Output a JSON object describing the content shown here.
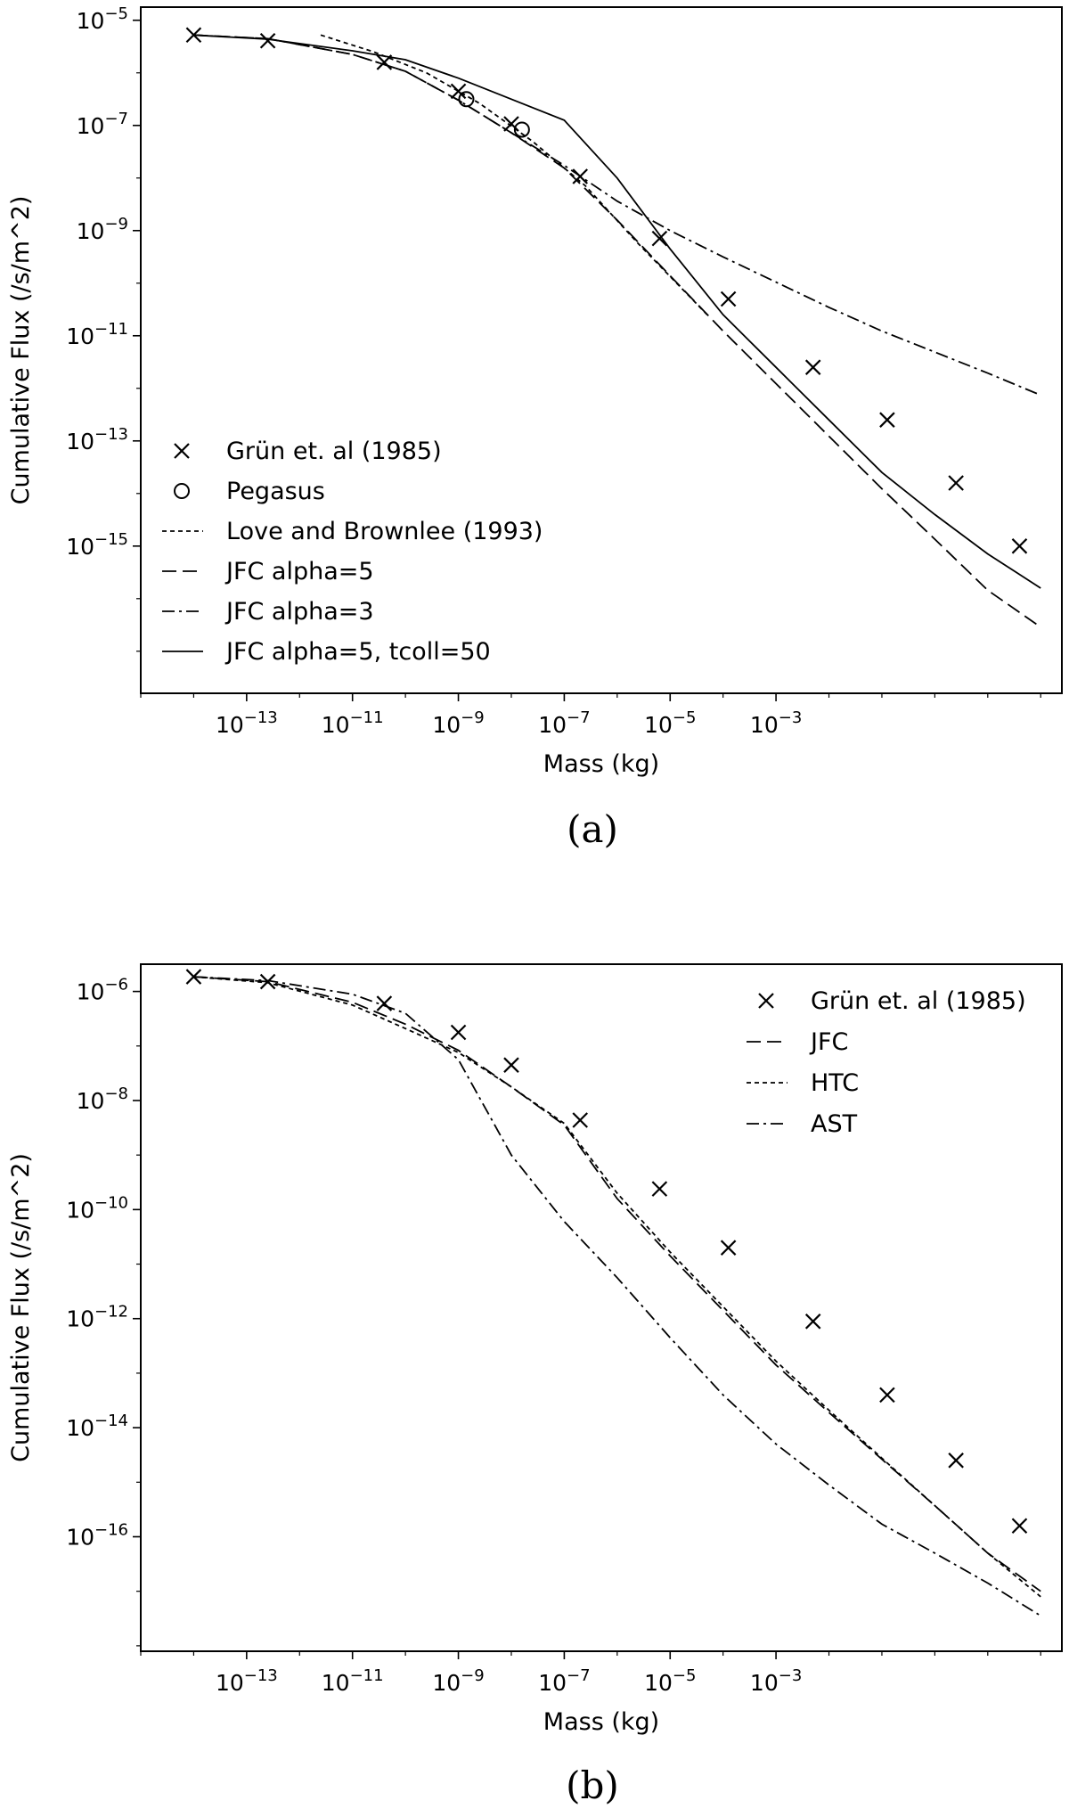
{
  "chart_data": [
    {
      "type": "line",
      "xscale": "log",
      "yscale": "log",
      "xlabel": "Mass (kg)",
      "ylabel": "Cumulative Flux (/s/m^2)",
      "caption": "(a)",
      "xlim_exp": [
        -15.0,
        2.4
      ],
      "ylim_exp": [
        -17.8,
        -4.75
      ],
      "xticks": [
        -13,
        -11,
        -9,
        -7,
        -5,
        -3
      ],
      "yticks": [
        -15,
        -13,
        -11,
        -9,
        -7,
        -5
      ],
      "legend_position": "lower-left",
      "series": [
        {
          "name": "Grün et. al (1985)",
          "style": "marker-x",
          "x": [
            -14.0,
            -12.6,
            -10.4,
            -9.0,
            -8.0,
            -6.7,
            -5.2,
            -3.9,
            -2.3,
            -0.9,
            0.4,
            1.6
          ],
          "y": [
            -5.28,
            -5.39,
            -5.8,
            -6.35,
            -6.97,
            -7.97,
            -9.15,
            -10.3,
            -11.6,
            -12.6,
            -13.8,
            -15.0
          ]
        },
        {
          "name": "Pegasus",
          "style": "marker-o",
          "x": [
            -8.85,
            -7.8
          ],
          "y": [
            -6.5,
            -7.08
          ]
        },
        {
          "name": "Love and Brownlee (1993)",
          "style": "dotted",
          "x": [
            -11.6,
            -10.6,
            -9.6,
            -8.6,
            -7.6,
            -6.6,
            -5.6,
            -4.3
          ],
          "y": [
            -5.28,
            -5.6,
            -6.0,
            -6.58,
            -7.3,
            -8.15,
            -9.25,
            -10.6
          ]
        },
        {
          "name": "JFC alpha=5",
          "style": "dashed",
          "x": [
            -14.0,
            -12.6,
            -11.0,
            -10.0,
            -9.0,
            -8.0,
            -7.0,
            -6.0,
            -5.0,
            -4.0,
            -3.0,
            -2.0,
            -1.0,
            0.0,
            1.0,
            2.0
          ],
          "y": [
            -5.28,
            -5.35,
            -5.65,
            -5.97,
            -6.52,
            -7.14,
            -7.81,
            -8.8,
            -9.86,
            -10.91,
            -11.91,
            -12.91,
            -13.91,
            -14.87,
            -15.84,
            -16.54
          ]
        },
        {
          "name": "JFC alpha=3",
          "style": "dashdot",
          "x": [
            -14.0,
            -12.6,
            -11.0,
            -10.0,
            -9.0,
            -8.0,
            -7.0,
            -6.0,
            -5.0,
            -4.0,
            -3.0,
            -2.0,
            -1.0,
            0.0,
            1.0,
            2.0
          ],
          "y": [
            -5.28,
            -5.35,
            -5.65,
            -5.97,
            -6.52,
            -7.14,
            -7.76,
            -8.44,
            -9.0,
            -9.5,
            -9.98,
            -10.46,
            -10.91,
            -11.31,
            -11.71,
            -12.13
          ]
        },
        {
          "name": "JFC alpha=5, tcoll=50",
          "style": "solid",
          "x": [
            -14.0,
            -12.6,
            -11.0,
            -10.0,
            -9.0,
            -8.0,
            -7.0,
            -6.0,
            -5.0,
            -4.0,
            -3.0,
            -2.0,
            -1.0,
            0.0,
            1.0,
            2.0
          ],
          "y": [
            -5.28,
            -5.36,
            -5.58,
            -5.75,
            -6.1,
            -6.5,
            -6.9,
            -8.0,
            -9.35,
            -10.6,
            -11.6,
            -12.6,
            -13.6,
            -14.4,
            -15.15,
            -15.8
          ]
        }
      ]
    },
    {
      "type": "line",
      "xscale": "log",
      "yscale": "log",
      "xlabel": "Mass (kg)",
      "ylabel": "Cumulative Flux (/s/m^2)",
      "caption": "(b)",
      "xlim_exp": [
        -15.0,
        2.4
      ],
      "ylim_exp": [
        -18.1,
        -5.5
      ],
      "xticks": [
        -13,
        -11,
        -9,
        -7,
        -5,
        -3
      ],
      "yticks": [
        -16,
        -14,
        -12,
        -10,
        -8,
        -6
      ],
      "legend_position": "upper-right",
      "series": [
        {
          "name": "Grün et. al (1985)",
          "style": "marker-x",
          "x": [
            -14.0,
            -12.6,
            -10.4,
            -9.0,
            -8.0,
            -6.7,
            -5.2,
            -3.9,
            -2.3,
            -0.9,
            0.4,
            1.6
          ],
          "y": [
            -5.73,
            -5.82,
            -6.22,
            -6.75,
            -7.35,
            -8.36,
            -9.62,
            -10.7,
            -12.05,
            -13.4,
            -14.6,
            -15.8
          ]
        },
        {
          "name": "JFC",
          "style": "dashed",
          "x": [
            -14.0,
            -12.6,
            -11.0,
            -10.0,
            -9.0,
            -8.0,
            -7.0,
            -6.0,
            -5.0,
            -4.0,
            -3.0,
            -2.0,
            -1.0,
            0.0,
            1.0,
            2.0
          ],
          "y": [
            -5.73,
            -5.82,
            -6.2,
            -6.6,
            -7.08,
            -7.75,
            -8.45,
            -9.8,
            -10.85,
            -11.85,
            -12.85,
            -13.72,
            -14.58,
            -15.43,
            -16.3,
            -17.0
          ]
        },
        {
          "name": "HTC",
          "style": "dotted",
          "x": [
            -14.0,
            -12.6,
            -11.0,
            -10.0,
            -9.0,
            -8.0,
            -7.0,
            -6.0,
            -5.0,
            -4.0,
            -3.0,
            -2.0,
            -1.0,
            0.0,
            1.0,
            2.0
          ],
          "y": [
            -5.73,
            -5.84,
            -6.25,
            -6.68,
            -7.12,
            -7.75,
            -8.42,
            -9.7,
            -10.78,
            -11.78,
            -12.78,
            -13.68,
            -14.56,
            -15.43,
            -16.3,
            -17.1
          ]
        },
        {
          "name": "AST",
          "style": "dashdot",
          "x": [
            -14.0,
            -12.6,
            -11.0,
            -10.0,
            -9.0,
            -8.0,
            -7.0,
            -6.0,
            -5.0,
            -4.0,
            -3.0,
            -2.0,
            -1.0,
            0.0,
            1.0,
            2.0
          ],
          "y": [
            -5.73,
            -5.8,
            -6.05,
            -6.4,
            -7.25,
            -9.0,
            -10.22,
            -11.25,
            -12.35,
            -13.4,
            -14.3,
            -15.05,
            -15.77,
            -16.3,
            -16.85,
            -17.45
          ]
        }
      ]
    }
  ]
}
